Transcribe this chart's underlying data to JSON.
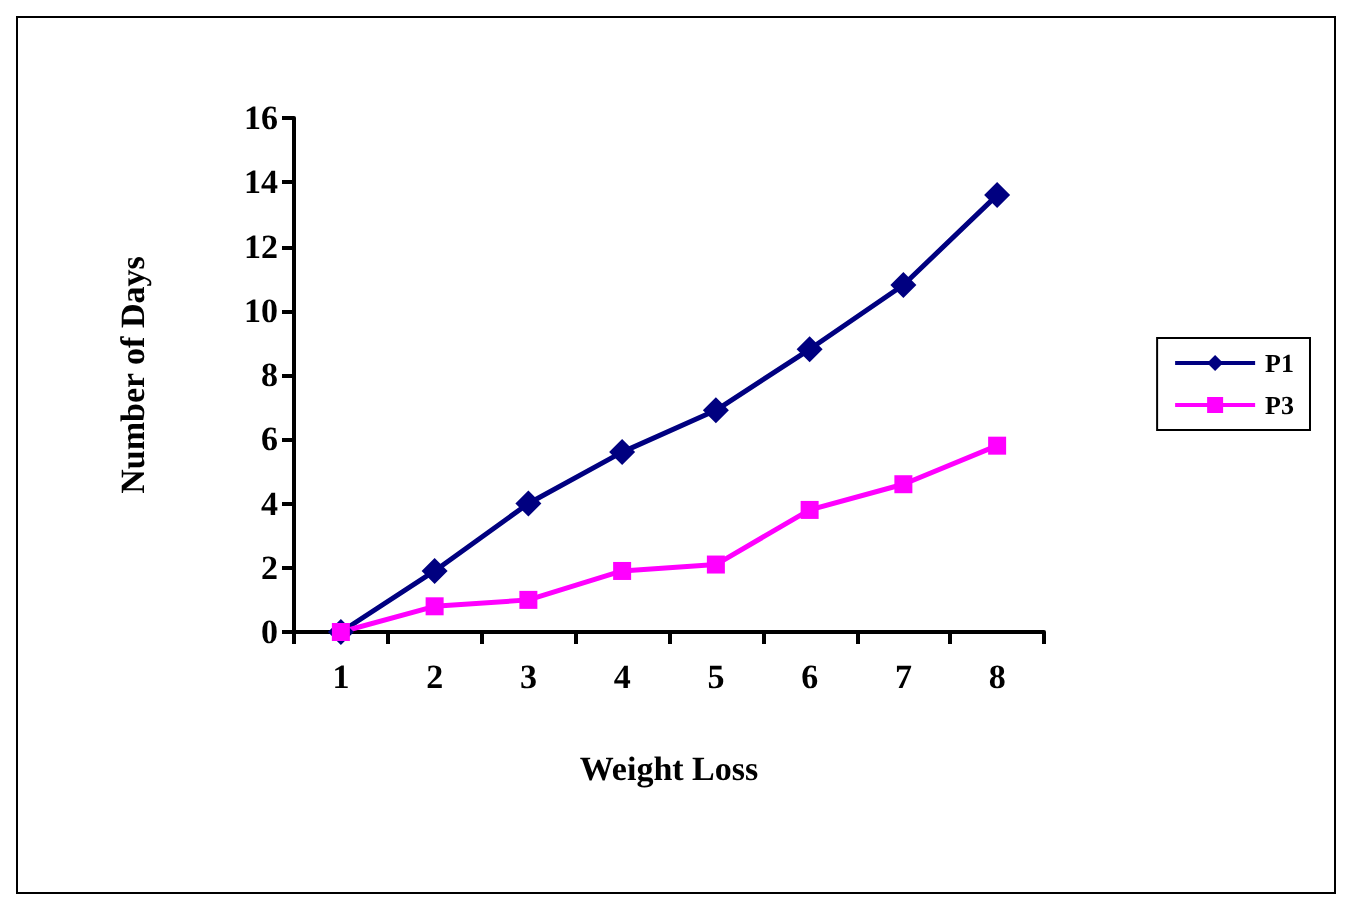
{
  "chart_data": {
    "type": "line",
    "xlabel": "Weight Loss",
    "ylabel": "Number of Days",
    "categories": [
      "1",
      "2",
      "3",
      "4",
      "5",
      "6",
      "7",
      "8"
    ],
    "series": [
      {
        "name": "P1",
        "color": "#000080",
        "marker": "diamond",
        "values": [
          0,
          1.9,
          4.0,
          5.6,
          6.9,
          8.8,
          10.8,
          13.6
        ]
      },
      {
        "name": "P3",
        "color": "#ff00ff",
        "marker": "square",
        "values": [
          0,
          0.8,
          1.0,
          1.9,
          2.1,
          3.8,
          4.6,
          5.8
        ]
      }
    ],
    "ylim": [
      0,
      16
    ],
    "yticks": [
      0,
      2,
      4,
      6,
      8,
      10,
      12,
      14,
      16
    ],
    "grid": false,
    "legend": "right",
    "line_style": "solid"
  }
}
